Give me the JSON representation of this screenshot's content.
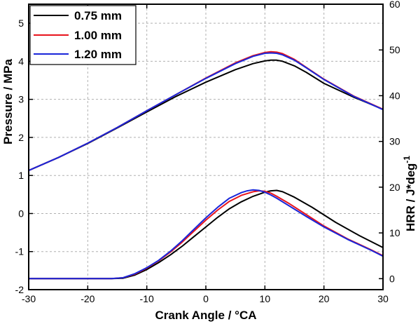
{
  "chart_data": {
    "type": "line",
    "xlabel": "Crank Angle / °CA",
    "ylabel_left": "Pressure / MPa",
    "ylabel_right_main": "HRR / J*deg",
    "ylabel_right_sup": "-1",
    "xlim": [
      -30,
      30
    ],
    "ylim_left": [
      -2,
      5.5
    ],
    "ylim_right": [
      -2.4,
      60
    ],
    "x_ticks": [
      -30,
      -20,
      -10,
      0,
      10,
      20,
      30
    ],
    "x_tick_labels": [
      "-30",
      "-20",
      "-10",
      "0",
      "10",
      "20",
      "30"
    ],
    "y_left_ticks": [
      -2,
      -1,
      0,
      1,
      2,
      3,
      4,
      5
    ],
    "y_left_tick_labels": [
      "-2",
      "-1",
      "0",
      "1",
      "2",
      "3",
      "4",
      "5"
    ],
    "y_right_ticks": [
      0,
      10,
      20,
      30,
      40,
      50,
      60
    ],
    "y_right_tick_labels": [
      "0",
      "10",
      "20",
      "30",
      "40",
      "50",
      "60"
    ],
    "grid": true,
    "legend_position": "top-left",
    "series": [
      {
        "name": "0.75 mm",
        "color": "#000000",
        "pressure": {
          "x": [
            -30,
            -25,
            -20,
            -15,
            -10,
            -5,
            0,
            5,
            8,
            10,
            11,
            12,
            13,
            15,
            17,
            20,
            25,
            30
          ],
          "y": [
            1.13,
            1.47,
            1.84,
            2.25,
            2.67,
            3.08,
            3.45,
            3.78,
            3.94,
            4.01,
            4.03,
            4.03,
            4.0,
            3.88,
            3.71,
            3.42,
            3.06,
            2.74
          ]
        },
        "hrr": {
          "x": [
            -30,
            -20,
            -16,
            -14,
            -12,
            -10,
            -8,
            -6,
            -4,
            -2,
            0,
            2,
            4,
            6,
            8,
            10,
            11,
            12,
            13,
            15,
            18,
            22,
            26,
            30
          ],
          "y": [
            0.0,
            0.0,
            0.0,
            0.1,
            0.8,
            2.0,
            3.5,
            5.2,
            7.1,
            9.2,
            11.3,
            13.4,
            15.3,
            16.8,
            18.0,
            18.9,
            19.2,
            19.3,
            19.0,
            17.8,
            15.6,
            12.3,
            9.4,
            6.8
          ]
        }
      },
      {
        "name": "1.00 mm",
        "color": "#e8141c",
        "pressure": {
          "x": [
            -30,
            -25,
            -20,
            -15,
            -10,
            -5,
            0,
            5,
            8,
            10,
            11,
            12,
            13,
            15,
            17,
            20,
            25,
            30
          ],
          "y": [
            1.13,
            1.47,
            1.85,
            2.26,
            2.7,
            3.13,
            3.56,
            3.96,
            4.15,
            4.23,
            4.25,
            4.24,
            4.2,
            4.05,
            3.84,
            3.53,
            3.09,
            2.74
          ]
        },
        "hrr": {
          "x": [
            -30,
            -20,
            -16,
            -14,
            -12,
            -10,
            -8,
            -6,
            -4,
            -2,
            0,
            2,
            4,
            6,
            8,
            9,
            10,
            11,
            12,
            14,
            17,
            20,
            24,
            28,
            30
          ],
          "y": [
            0.0,
            0.0,
            0.0,
            0.2,
            1.0,
            2.3,
            3.9,
            5.8,
            8.0,
            10.4,
            12.8,
            15.0,
            16.9,
            18.2,
            19.0,
            19.2,
            19.1,
            18.7,
            18.0,
            16.5,
            14.0,
            11.5,
            8.7,
            6.3,
            5.0
          ]
        }
      },
      {
        "name": "1.20 mm",
        "color": "#1a26d9",
        "pressure": {
          "x": [
            -30,
            -25,
            -20,
            -15,
            -10,
            -5,
            0,
            5,
            8,
            10,
            11,
            12,
            13,
            15,
            17,
            20,
            25,
            30
          ],
          "y": [
            1.13,
            1.47,
            1.85,
            2.26,
            2.7,
            3.13,
            3.55,
            3.94,
            4.13,
            4.21,
            4.22,
            4.21,
            4.17,
            4.03,
            3.83,
            3.52,
            3.08,
            2.73
          ]
        },
        "hrr": {
          "x": [
            -30,
            -20,
            -16,
            -14,
            -12,
            -10,
            -8,
            -6,
            -4,
            -2,
            0,
            2,
            4,
            6,
            7,
            8,
            9,
            10,
            11,
            12,
            14,
            17,
            20,
            24,
            28,
            30
          ],
          "y": [
            0.0,
            0.0,
            0.0,
            0.2,
            1.1,
            2.4,
            4.0,
            6.0,
            8.3,
            10.8,
            13.3,
            15.6,
            17.6,
            18.8,
            19.2,
            19.4,
            19.3,
            18.9,
            18.3,
            17.6,
            16.0,
            13.6,
            11.3,
            8.6,
            6.2,
            4.9
          ]
        }
      }
    ]
  }
}
